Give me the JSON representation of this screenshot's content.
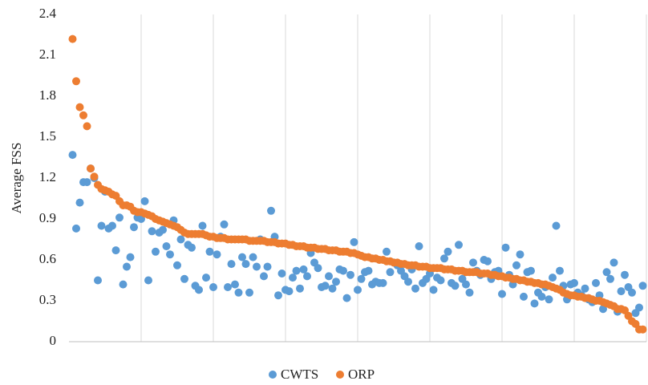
{
  "chart_data": {
    "type": "scatter",
    "y_label": "Average FSS",
    "x": [
      1,
      2,
      3,
      4,
      5,
      6,
      7,
      8,
      9,
      10,
      11,
      12,
      13,
      14,
      15,
      16,
      17,
      18,
      19,
      20,
      21,
      22,
      23,
      24,
      25,
      26,
      27,
      28,
      29,
      30,
      31,
      32,
      33,
      34,
      35,
      36,
      37,
      38,
      39,
      40,
      41,
      42,
      43,
      44,
      45,
      46,
      47,
      48,
      49,
      50,
      51,
      52,
      53,
      54,
      55,
      56,
      57,
      58,
      59,
      60,
      61,
      62,
      63,
      64,
      65,
      66,
      67,
      68,
      69,
      70,
      71,
      72,
      73,
      74,
      75,
      76,
      77,
      78,
      79,
      80,
      81,
      82,
      83,
      84,
      85,
      86,
      87,
      88,
      89,
      90,
      91,
      92,
      93,
      94,
      95,
      96,
      97,
      98,
      99,
      100,
      101,
      102,
      103,
      104,
      105,
      106,
      107,
      108,
      109,
      110,
      111,
      112,
      113,
      114,
      115,
      116,
      117,
      118,
      119,
      120,
      121,
      122,
      123,
      124,
      125,
      126,
      127,
      128,
      129,
      130,
      131,
      132,
      133,
      134,
      135,
      136,
      137,
      138,
      139,
      140,
      141,
      142,
      143,
      144,
      145,
      146,
      147,
      148,
      149,
      150,
      151,
      152,
      153,
      154,
      155,
      156,
      157,
      158,
      159
    ],
    "series": [
      {
        "name": "CWTS",
        "color": "#5b9bd5",
        "values": [
          1.37,
          0.83,
          1.02,
          1.17,
          1.17,
          1.27,
          1.2,
          0.45,
          0.85,
          1.1,
          0.83,
          0.85,
          0.67,
          0.91,
          0.42,
          0.55,
          0.62,
          0.84,
          0.91,
          0.9,
          1.03,
          0.45,
          0.81,
          0.66,
          0.8,
          0.82,
          0.7,
          0.64,
          0.89,
          0.56,
          0.75,
          0.46,
          0.71,
          0.69,
          0.41,
          0.38,
          0.85,
          0.47,
          0.66,
          0.4,
          0.64,
          0.77,
          0.86,
          0.4,
          0.57,
          0.42,
          0.36,
          0.62,
          0.57,
          0.36,
          0.62,
          0.55,
          0.75,
          0.48,
          0.55,
          0.96,
          0.77,
          0.34,
          0.5,
          0.38,
          0.37,
          0.47,
          0.52,
          0.39,
          0.53,
          0.48,
          0.65,
          0.58,
          0.54,
          0.4,
          0.41,
          0.48,
          0.39,
          0.44,
          0.53,
          0.52,
          0.32,
          0.49,
          0.73,
          0.38,
          0.46,
          0.51,
          0.52,
          0.42,
          0.44,
          0.43,
          0.43,
          0.66,
          0.51,
          0.58,
          0.56,
          0.52,
          0.48,
          0.44,
          0.53,
          0.39,
          0.7,
          0.43,
          0.46,
          0.5,
          0.38,
          0.47,
          0.45,
          0.61,
          0.66,
          0.43,
          0.41,
          0.71,
          0.46,
          0.42,
          0.36,
          0.58,
          0.52,
          0.49,
          0.6,
          0.59,
          0.46,
          0.51,
          0.52,
          0.35,
          0.69,
          0.49,
          0.42,
          0.56,
          0.64,
          0.33,
          0.51,
          0.52,
          0.28,
          0.36,
          0.33,
          0.4,
          0.31,
          0.47,
          0.85,
          0.52,
          0.41,
          0.31,
          0.42,
          0.43,
          0.36,
          0.34,
          0.39,
          0.31,
          0.29,
          0.43,
          0.34,
          0.24,
          0.51,
          0.46,
          0.58,
          0.22,
          0.37,
          0.49,
          0.4,
          0.36,
          0.21,
          0.25,
          0.41
        ]
      },
      {
        "name": "ORP",
        "color": "#ed7d31",
        "values": [
          2.22,
          1.91,
          1.72,
          1.66,
          1.58,
          1.27,
          1.21,
          1.15,
          1.12,
          1.11,
          1.1,
          1.08,
          1.07,
          1.03,
          1.0,
          1.0,
          0.99,
          0.96,
          0.95,
          0.95,
          0.94,
          0.93,
          0.92,
          0.9,
          0.89,
          0.88,
          0.87,
          0.86,
          0.85,
          0.84,
          0.82,
          0.8,
          0.79,
          0.79,
          0.79,
          0.79,
          0.79,
          0.78,
          0.77,
          0.77,
          0.76,
          0.76,
          0.76,
          0.75,
          0.75,
          0.75,
          0.75,
          0.75,
          0.75,
          0.74,
          0.74,
          0.74,
          0.74,
          0.74,
          0.73,
          0.73,
          0.73,
          0.72,
          0.72,
          0.72,
          0.71,
          0.71,
          0.7,
          0.7,
          0.7,
          0.69,
          0.69,
          0.69,
          0.68,
          0.68,
          0.68,
          0.67,
          0.67,
          0.67,
          0.66,
          0.66,
          0.66,
          0.65,
          0.65,
          0.64,
          0.63,
          0.62,
          0.62,
          0.61,
          0.61,
          0.6,
          0.6,
          0.59,
          0.59,
          0.58,
          0.58,
          0.57,
          0.57,
          0.56,
          0.56,
          0.56,
          0.55,
          0.55,
          0.55,
          0.54,
          0.54,
          0.54,
          0.54,
          0.53,
          0.53,
          0.53,
          0.52,
          0.52,
          0.52,
          0.51,
          0.51,
          0.51,
          0.51,
          0.5,
          0.5,
          0.5,
          0.49,
          0.49,
          0.48,
          0.48,
          0.47,
          0.47,
          0.46,
          0.46,
          0.45,
          0.45,
          0.44,
          0.44,
          0.43,
          0.43,
          0.42,
          0.42,
          0.41,
          0.4,
          0.39,
          0.38,
          0.36,
          0.35,
          0.34,
          0.34,
          0.33,
          0.33,
          0.32,
          0.32,
          0.31,
          0.3,
          0.3,
          0.29,
          0.28,
          0.27,
          0.26,
          0.24,
          0.24,
          0.23,
          0.19,
          0.15,
          0.13,
          0.09,
          0.09
        ]
      }
    ],
    "xlim": [
      0,
      160
    ],
    "xticks": [
      20,
      40,
      60,
      80,
      100,
      120,
      140,
      160
    ],
    "ylim": [
      0,
      2.4
    ],
    "yticks": [
      0,
      0.3,
      0.6,
      0.9,
      1.2,
      1.5,
      1.8,
      2.1,
      2.4
    ],
    "grid": "vertical",
    "legend": "bottom"
  }
}
